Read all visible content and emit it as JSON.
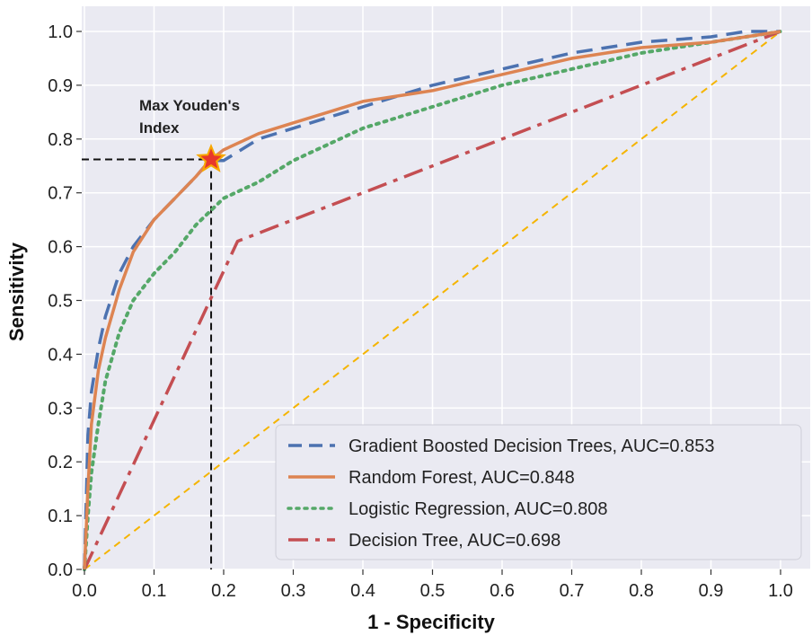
{
  "chart_data": {
    "type": "line",
    "title": "",
    "xlabel": "1 - Specificity",
    "ylabel": "Sensitivity",
    "xlim": [
      0,
      1
    ],
    "ylim": [
      0,
      1
    ],
    "xticks": [
      "0.0",
      "0.1",
      "0.2",
      "0.3",
      "0.4",
      "0.5",
      "0.6",
      "0.7",
      "0.8",
      "0.9",
      "1.0"
    ],
    "yticks": [
      "0.0",
      "0.1",
      "0.2",
      "0.3",
      "0.4",
      "0.5",
      "0.6",
      "0.7",
      "0.8",
      "0.9",
      "1.0"
    ],
    "grid": true,
    "legend_position": "bottom-right",
    "background": "#eaeaf2",
    "series": [
      {
        "name": "Gradient Boosted Decision Trees, AUC=0.853",
        "color": "#4c72b0",
        "style": "dashed",
        "x": [
          0,
          0.005,
          0.01,
          0.02,
          0.03,
          0.05,
          0.07,
          0.1,
          0.13,
          0.16,
          0.18,
          0.2,
          0.25,
          0.3,
          0.35,
          0.4,
          0.5,
          0.6,
          0.7,
          0.8,
          0.9,
          0.95,
          1.0
        ],
        "y": [
          0,
          0.25,
          0.33,
          0.41,
          0.47,
          0.55,
          0.6,
          0.65,
          0.69,
          0.73,
          0.76,
          0.76,
          0.8,
          0.82,
          0.84,
          0.86,
          0.9,
          0.93,
          0.96,
          0.98,
          0.99,
          1.0,
          1.0
        ]
      },
      {
        "name": "Random Forest, AUC=0.848",
        "color": "#dd8452",
        "style": "solid",
        "x": [
          0,
          0.005,
          0.01,
          0.02,
          0.03,
          0.05,
          0.07,
          0.1,
          0.13,
          0.16,
          0.18,
          0.2,
          0.25,
          0.3,
          0.35,
          0.4,
          0.5,
          0.6,
          0.7,
          0.8,
          0.9,
          0.95,
          1.0
        ],
        "y": [
          0,
          0.15,
          0.27,
          0.37,
          0.43,
          0.52,
          0.59,
          0.65,
          0.69,
          0.73,
          0.76,
          0.78,
          0.81,
          0.83,
          0.85,
          0.87,
          0.89,
          0.92,
          0.95,
          0.97,
          0.98,
          0.99,
          1.0
        ]
      },
      {
        "name": "Logistic Regression, AUC=0.808",
        "color": "#55a868",
        "style": "dotted",
        "x": [
          0,
          0.005,
          0.01,
          0.02,
          0.03,
          0.05,
          0.07,
          0.1,
          0.13,
          0.16,
          0.2,
          0.25,
          0.3,
          0.35,
          0.4,
          0.5,
          0.6,
          0.7,
          0.8,
          0.9,
          0.95,
          1.0
        ],
        "y": [
          0,
          0.1,
          0.18,
          0.27,
          0.35,
          0.44,
          0.5,
          0.55,
          0.59,
          0.64,
          0.69,
          0.72,
          0.76,
          0.79,
          0.82,
          0.86,
          0.9,
          0.93,
          0.96,
          0.98,
          0.99,
          1.0
        ]
      },
      {
        "name": "Decision Tree, AUC=0.698",
        "color": "#c44e52",
        "style": "dashdot",
        "x": [
          0,
          0.22,
          1.0
        ],
        "y": [
          0,
          0.61,
          1.0
        ]
      }
    ],
    "reference_line": {
      "color": "#f5b400",
      "style": "dashed",
      "x": [
        0,
        1
      ],
      "y": [
        0,
        1
      ]
    },
    "annotation": {
      "lines": [
        "Max Youden's",
        "Index"
      ],
      "point": {
        "x": 0.182,
        "y": 0.762
      },
      "marker_color": "#e8372c",
      "marker_edge_color": "#f7a800"
    }
  }
}
